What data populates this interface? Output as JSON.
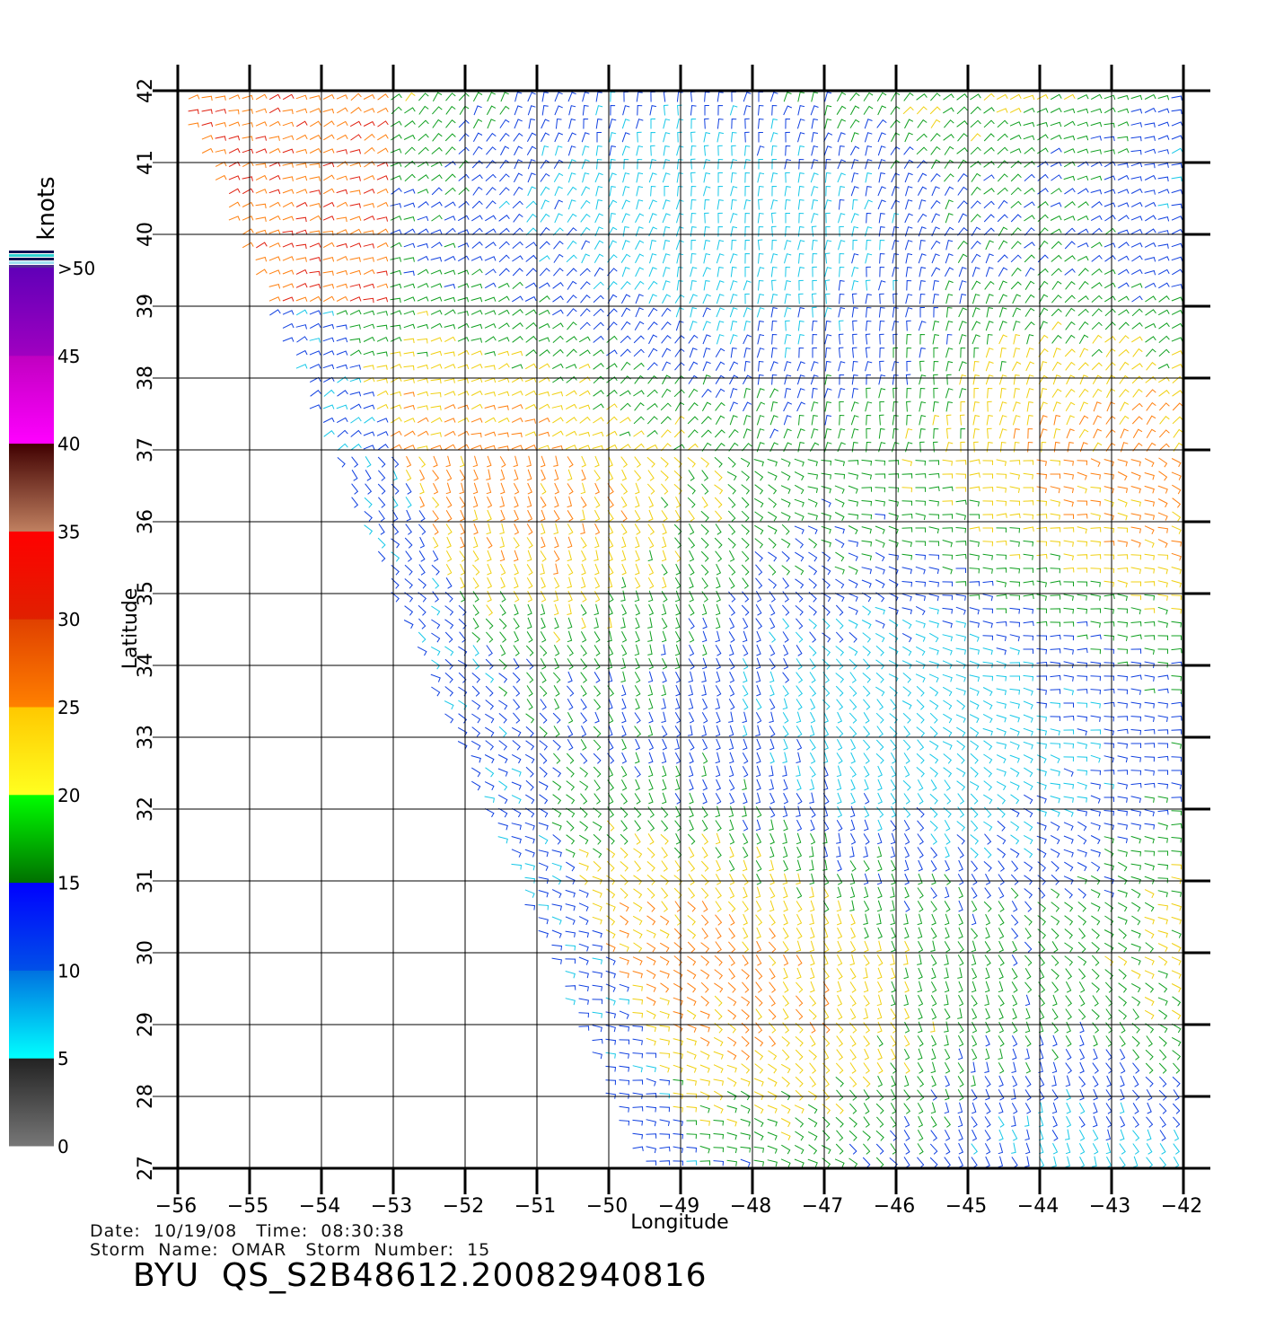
{
  "chart_data": {
    "type": "wind-barb map",
    "xlabel": "Longitude",
    "ylabel": "Latitude",
    "xlim": [
      -56,
      -42
    ],
    "ylim": [
      27,
      42
    ],
    "x_ticks": [
      "−56",
      "−55",
      "−54",
      "−53",
      "−52",
      "−51",
      "−50",
      "−49",
      "−48",
      "−47",
      "−46",
      "−45",
      "−44",
      "−43",
      "−42"
    ],
    "y_ticks": [
      "27",
      "28",
      "29",
      "30",
      "31",
      "32",
      "33",
      "34",
      "35",
      "36",
      "37",
      "38",
      "39",
      "40",
      "41",
      "42"
    ],
    "grid": true,
    "colorbar": {
      "title": "knots",
      "labels": [
        "0",
        "5",
        "10",
        "15",
        "20",
        "25",
        "30",
        "35",
        "40",
        "45",
        ">50"
      ],
      "bands": [
        {
          "range": "0-5",
          "from": "#777777",
          "to": "#222222"
        },
        {
          "range": "5-10",
          "from": "#00ffff",
          "to": "#0070e0"
        },
        {
          "range": "10-15",
          "from": "#0050e8",
          "to": "#0000ff"
        },
        {
          "range": "15-20",
          "from": "#007000",
          "to": "#00ff00"
        },
        {
          "range": "20-25",
          "from": "#ffff20",
          "to": "#ffc800"
        },
        {
          "range": "25-30",
          "from": "#ff8000",
          "to": "#e04000"
        },
        {
          "range": "30-35",
          "from": "#e02000",
          "to": "#ff0000"
        },
        {
          "range": "35-40",
          "from": "#c08060",
          "to": "#400000"
        },
        {
          "range": "40-45",
          "from": "#ff00ff",
          "to": "#c000c0"
        },
        {
          "range": "45-50",
          "from": "#a000c0",
          "to": "#6000b8"
        }
      ]
    }
  },
  "footer": {
    "date_line": "Date:  10/19/08   Time:  08:30:38",
    "storm_line": "Storm  Name:  OMAR   Storm  Number:  15",
    "title": "BYU  QS_S2B48612.20082940816"
  }
}
